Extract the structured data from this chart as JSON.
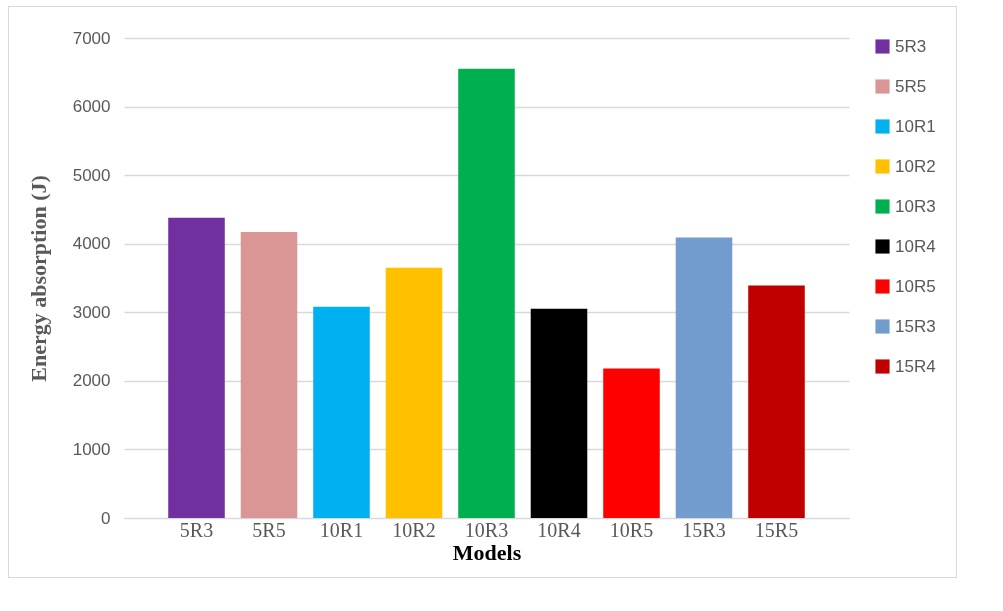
{
  "chart_data": {
    "type": "bar",
    "xlabel": "Models",
    "ylabel": "Energy absorption (J)",
    "categories": [
      "5R3",
      "5R5",
      "10R1",
      "10R2",
      "10R3",
      "10R4",
      "10R5",
      "15R3",
      "15R5"
    ],
    "series": [
      {
        "name": "5R3",
        "color": "#7030a0",
        "values": [
          4380,
          null,
          null,
          null,
          null,
          null,
          null,
          null,
          null
        ]
      },
      {
        "name": "5R5",
        "color": "#da9694",
        "values": [
          null,
          4170,
          null,
          null,
          null,
          null,
          null,
          null,
          null
        ]
      },
      {
        "name": "10R1",
        "color": "#00b0f0",
        "values": [
          null,
          null,
          3080,
          null,
          null,
          null,
          null,
          null,
          null
        ]
      },
      {
        "name": "10R2",
        "color": "#ffc000",
        "values": [
          null,
          null,
          null,
          3650,
          null,
          null,
          null,
          null,
          null
        ]
      },
      {
        "name": "10R3",
        "color": "#00b050",
        "values": [
          null,
          null,
          null,
          null,
          6550,
          null,
          null,
          null,
          null
        ]
      },
      {
        "name": "10R4",
        "color": "#000000",
        "values": [
          null,
          null,
          null,
          null,
          null,
          3050,
          null,
          null,
          null
        ]
      },
      {
        "name": "10R5",
        "color": "#ff0000",
        "values": [
          null,
          null,
          null,
          null,
          null,
          null,
          2180,
          null,
          null
        ]
      },
      {
        "name": "15R3",
        "color": "#739cce",
        "values": [
          null,
          null,
          null,
          null,
          null,
          null,
          null,
          4090,
          null
        ]
      },
      {
        "name": "15R4",
        "color": "#c00000",
        "values": [
          null,
          null,
          null,
          null,
          null,
          null,
          null,
          null,
          3390
        ]
      }
    ],
    "ylim": [
      0,
      7000
    ],
    "yticks": [
      0,
      1000,
      2000,
      3000,
      4000,
      5000,
      6000,
      7000
    ],
    "grid": "y",
    "legend": "right"
  }
}
